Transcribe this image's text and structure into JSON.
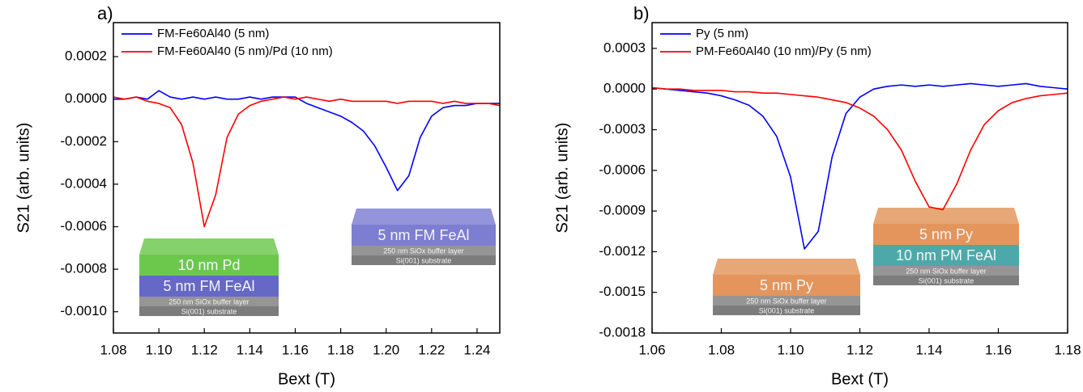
{
  "chart_data": [
    {
      "type": "line",
      "panel": "a)",
      "xlabel": "Bext (T)",
      "ylabel": "S21 (arb. units)",
      "x": [
        1.08,
        1.085,
        1.09,
        1.095,
        1.1,
        1.105,
        1.11,
        1.115,
        1.12,
        1.125,
        1.13,
        1.135,
        1.14,
        1.145,
        1.15,
        1.155,
        1.16,
        1.165,
        1.17,
        1.175,
        1.18,
        1.185,
        1.19,
        1.195,
        1.2,
        1.205,
        1.21,
        1.215,
        1.22,
        1.225,
        1.23,
        1.235,
        1.24,
        1.245,
        1.25
      ],
      "series": [
        {
          "name": "FM-Fe60Al40 (5 nm)",
          "color": "#0000ff",
          "values": [
            0,
            0,
            1e-05,
            0,
            4e-05,
            1e-05,
            0,
            1e-05,
            0,
            1e-05,
            0,
            0,
            1e-05,
            0,
            1e-05,
            1e-05,
            1e-05,
            -2e-05,
            -4e-05,
            -6e-05,
            -8e-05,
            -0.00011,
            -0.00015,
            -0.00022,
            -0.00032,
            -0.00043,
            -0.00036,
            -0.00018,
            -8e-05,
            -4e-05,
            -3e-05,
            -3e-05,
            -2e-05,
            -2e-05,
            -2e-05
          ]
        },
        {
          "name": "FM-Fe60Al40 (5 nm)/Pd (10 nm)",
          "color": "#ff0000",
          "values": [
            1e-05,
            0,
            1e-05,
            -1e-05,
            -2e-05,
            -4e-05,
            -0.00012,
            -0.0003,
            -0.0006,
            -0.00045,
            -0.00018,
            -7e-05,
            -3e-05,
            -1e-05,
            0,
            1e-05,
            0,
            1e-05,
            0,
            -1e-05,
            0,
            -1e-05,
            -1e-05,
            -1e-05,
            -1e-05,
            -2e-05,
            -1e-05,
            -1e-05,
            -1e-05,
            -2e-05,
            -1e-05,
            -2e-05,
            -2e-05,
            -2e-05,
            -3e-05
          ]
        }
      ],
      "xlim": [
        1.08,
        1.25
      ],
      "xticks": [
        1.08,
        {
          "value": 1.1,
          "label": "1.10"
        },
        1.12,
        1.14,
        1.16,
        1.18,
        {
          "value": 1.2,
          "label": "1.20"
        },
        1.22,
        1.24
      ],
      "ylim": [
        -0.0011,
        0.00036
      ],
      "yticks": [
        0.0002,
        {
          "value": 0,
          "label": "0.0000"
        },
        -0.0002,
        -0.0004,
        -0.0006,
        -0.0008,
        {
          "value": -0.001,
          "label": "-0.0010"
        }
      ],
      "insets": [
        {
          "layers": [
            {
              "label": "10 nm Pd",
              "color": "#5cc23a"
            },
            {
              "label": "5 nm FM FeAl",
              "color": "#5558c0"
            },
            {
              "label": "250 nm SiOx buffer layer",
              "color": "#8a8a8a"
            },
            {
              "label": "Si(001) substrate",
              "color": "#6e6e6e"
            }
          ]
        },
        {
          "layers": [
            {
              "label": "5 nm FM FeAl",
              "color": "#6f70cc"
            },
            {
              "label": "250 nm SiOx buffer layer",
              "color": "#8a8a8a"
            },
            {
              "label": "Si(001) substrate",
              "color": "#6e6e6e"
            }
          ]
        }
      ]
    },
    {
      "type": "line",
      "panel": "b)",
      "xlabel": "Bext (T)",
      "ylabel": "S21 (arb. units)",
      "x": [
        1.06,
        1.064,
        1.068,
        1.072,
        1.076,
        1.08,
        1.084,
        1.088,
        1.092,
        1.096,
        1.1,
        1.104,
        1.108,
        1.112,
        1.116,
        1.12,
        1.124,
        1.128,
        1.132,
        1.136,
        1.14,
        1.144,
        1.148,
        1.152,
        1.156,
        1.16,
        1.164,
        1.168,
        1.172,
        1.176,
        1.18
      ],
      "series": [
        {
          "name": "Py (5 nm)",
          "color": "#0000ff",
          "values": [
            1e-05,
            0,
            -1e-05,
            -2e-05,
            -3e-05,
            -5e-05,
            -8e-05,
            -0.00012,
            -0.0002,
            -0.00035,
            -0.00065,
            -0.00118,
            -0.00105,
            -0.0005,
            -0.00018,
            -6e-05,
            0,
            2e-05,
            3e-05,
            2e-05,
            3e-05,
            2e-05,
            3e-05,
            4e-05,
            3e-05,
            2e-05,
            3e-05,
            4e-05,
            2e-05,
            1e-05,
            0
          ]
        },
        {
          "name": "PM-Fe60Al40 (10 nm)/Py (5 nm)",
          "color": "#ff0000",
          "values": [
            1e-05,
            0,
            0,
            -1e-05,
            -1e-05,
            -1e-05,
            -2e-05,
            -2e-05,
            -3e-05,
            -3e-05,
            -4e-05,
            -5e-05,
            -6e-05,
            -8e-05,
            -0.0001,
            -0.00014,
            -0.0002,
            -0.0003,
            -0.00045,
            -0.00068,
            -0.00087,
            -0.00089,
            -0.0007,
            -0.00045,
            -0.00026,
            -0.00016,
            -0.0001,
            -7e-05,
            -5e-05,
            -4e-05,
            -3e-05
          ]
        }
      ],
      "xlim": [
        1.06,
        1.18
      ],
      "xticks": [
        1.06,
        1.08,
        {
          "value": 1.1,
          "label": "1.10"
        },
        1.12,
        1.14,
        1.16,
        1.18
      ],
      "ylim": [
        -0.0018,
        0.00049
      ],
      "yticks": [
        0.0003,
        {
          "value": 0,
          "label": "0.0000"
        },
        -0.0003,
        -0.0006,
        -0.0009,
        -0.0012,
        -0.0015,
        -0.0018
      ],
      "insets": [
        {
          "layers": [
            {
              "label": "5 nm Py",
              "color": "#e08a4a"
            },
            {
              "label": "250 nm SiOx buffer layer",
              "color": "#8a8a8a"
            },
            {
              "label": "Si(001) substrate",
              "color": "#6e6e6e"
            }
          ]
        },
        {
          "layers": [
            {
              "label": "5 nm Py",
              "color": "#e08a4a"
            },
            {
              "label": "10 nm PM FeAl",
              "color": "#3aa0a0"
            },
            {
              "label": "250 nm SiOx buffer layer",
              "color": "#8a8a8a"
            },
            {
              "label": "Si(001) substrate",
              "color": "#6e6e6e"
            }
          ]
        }
      ]
    }
  ]
}
